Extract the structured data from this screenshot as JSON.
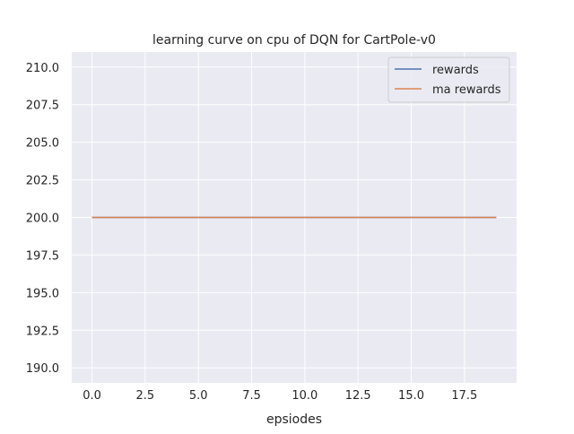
{
  "chart_data": {
    "type": "line",
    "title": "learning curve on cpu of DQN for CartPole-v0",
    "xlabel": "epsiodes",
    "ylabel": "",
    "xlim": [
      -0.95,
      19.95
    ],
    "ylim": [
      189,
      211
    ],
    "grid": true,
    "legend_placement": "top-right",
    "background_color": "#eaeaf2",
    "grid_color": "#ffffff",
    "x_ticks": [
      0.0,
      2.5,
      5.0,
      7.5,
      10.0,
      12.5,
      15.0,
      17.5
    ],
    "x_tick_labels": [
      "0.0",
      "2.5",
      "5.0",
      "7.5",
      "10.0",
      "12.5",
      "15.0",
      "17.5"
    ],
    "y_ticks": [
      190.0,
      192.5,
      195.0,
      197.5,
      200.0,
      202.5,
      205.0,
      207.5,
      210.0
    ],
    "y_tick_labels": [
      "190.0",
      "192.5",
      "195.0",
      "197.5",
      "200.0",
      "202.5",
      "205.0",
      "207.5",
      "210.0"
    ],
    "x": [
      0,
      1,
      2,
      3,
      4,
      5,
      6,
      7,
      8,
      9,
      10,
      11,
      12,
      13,
      14,
      15,
      16,
      17,
      18,
      19
    ],
    "series": [
      {
        "name": "rewards",
        "color": "#4c72b0",
        "values": [
          200,
          200,
          200,
          200,
          200,
          200,
          200,
          200,
          200,
          200,
          200,
          200,
          200,
          200,
          200,
          200,
          200,
          200,
          200,
          200
        ]
      },
      {
        "name": "ma rewards",
        "color": "#dd8452",
        "values": [
          200,
          200,
          200,
          200,
          200,
          200,
          200,
          200,
          200,
          200,
          200,
          200,
          200,
          200,
          200,
          200,
          200,
          200,
          200,
          200
        ]
      }
    ]
  }
}
